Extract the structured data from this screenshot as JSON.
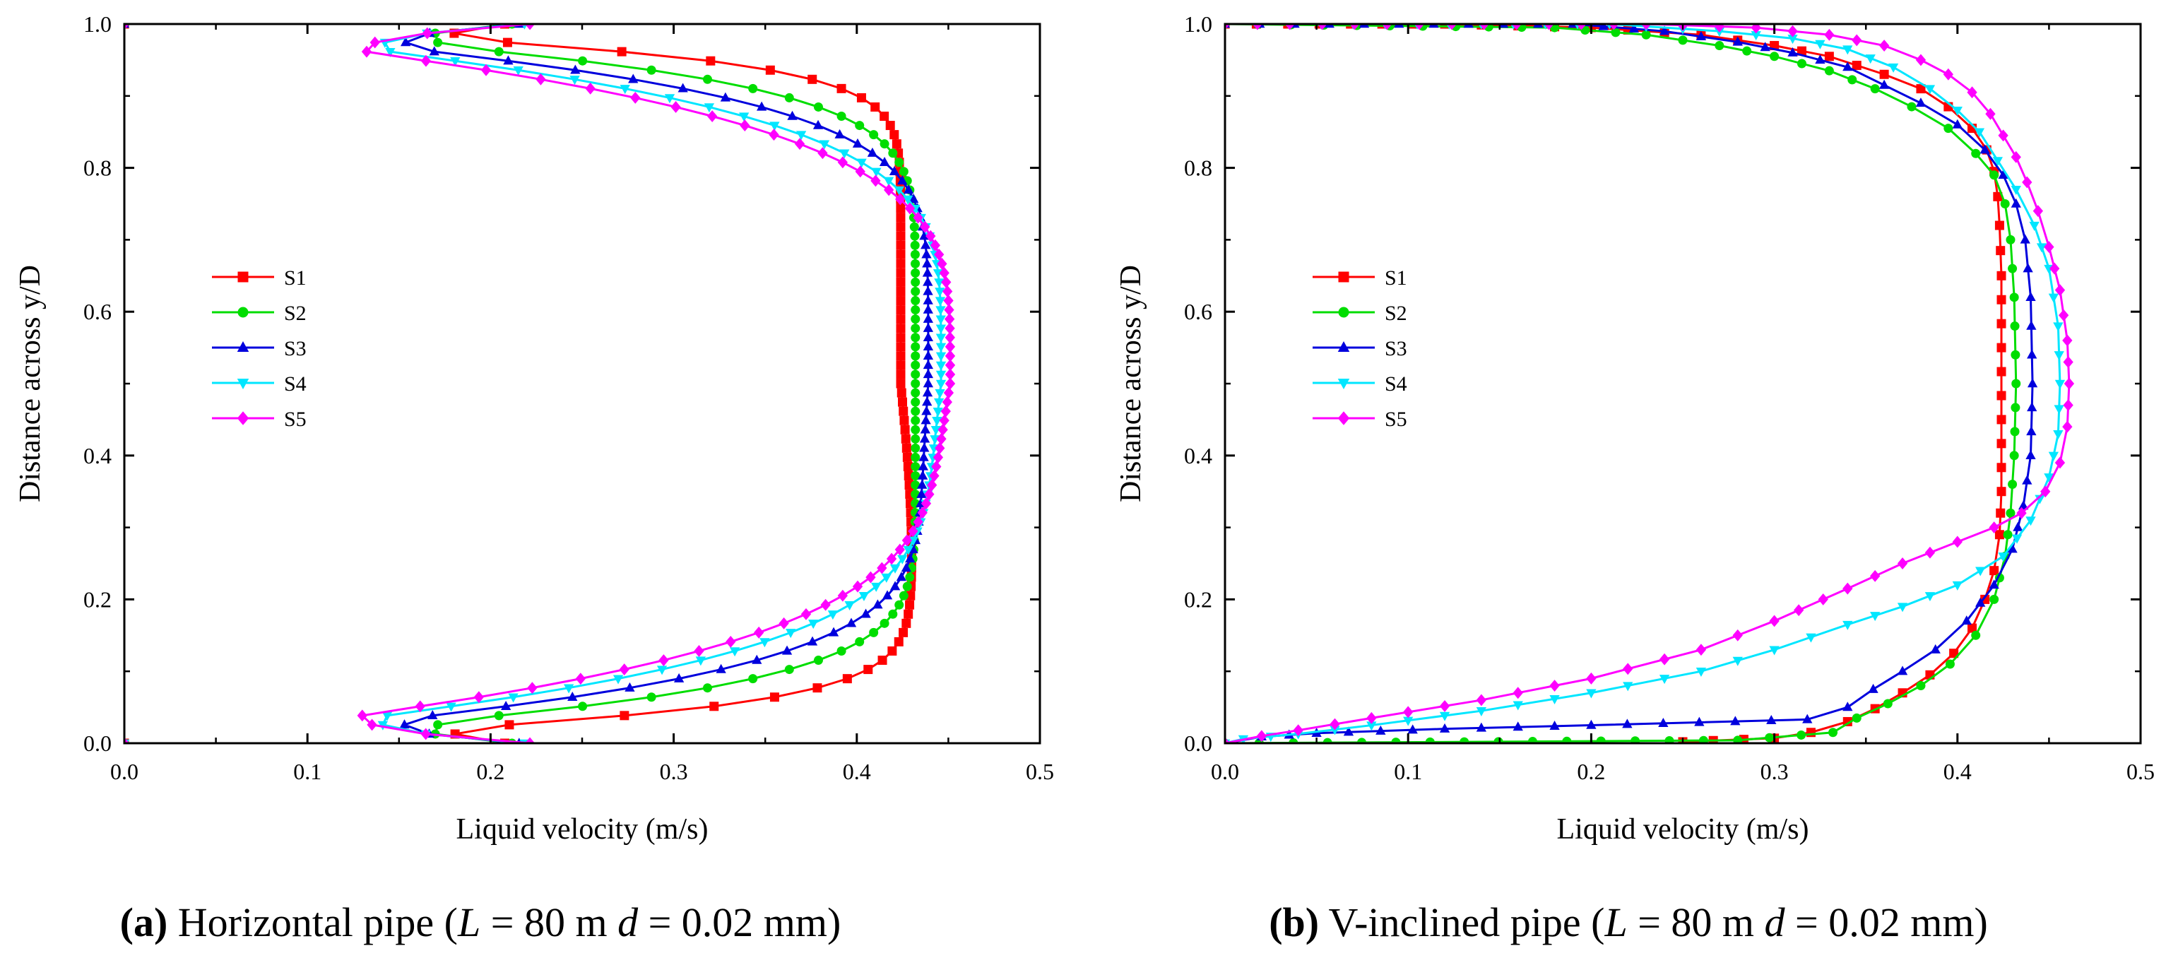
{
  "chart_data": [
    {
      "panel": "a",
      "type": "line",
      "xlabel": "Liquid velocity (m/s)",
      "ylabel": "Distance across y/D",
      "xlim": [
        0.0,
        0.5
      ],
      "ylim": [
        0.0,
        1.0
      ],
      "xticks": [
        "0.0",
        "0.1",
        "0.2",
        "0.3",
        "0.4",
        "0.5"
      ],
      "yticks": [
        "0.0",
        "0.2",
        "0.4",
        "0.6",
        "0.8",
        "1.0"
      ],
      "legend_position": "center-left",
      "caption": {
        "label": "(a)",
        "text_before": " Horizontal pipe (",
        "L": "L",
        "mid1": " = 80 m ",
        "d": "d",
        "mid2": " = 0.02 mm)"
      },
      "series": [
        {
          "name": "S1",
          "color": "#ff0000",
          "marker": "square",
          "umax": 0.424,
          "p": 13,
          "wall": 0.212,
          "lower_bump": 0.012
        },
        {
          "name": "S2",
          "color": "#00dd00",
          "marker": "circle",
          "umax": 0.432,
          "p": 8,
          "wall": 0.216,
          "lower_bump": 0.0
        },
        {
          "name": "S3",
          "color": "#0000dd",
          "marker": "triangle-up",
          "umax": 0.439,
          "p": 6,
          "wall": 0.22,
          "lower_bump": -0.008
        },
        {
          "name": "S4",
          "color": "#00e6ff",
          "marker": "triangle-down",
          "umax": 0.446,
          "p": 4.8,
          "wall": 0.223,
          "lower_bump": -0.014
        },
        {
          "name": "S5",
          "color": "#ff00ff",
          "marker": "diamond",
          "umax": 0.451,
          "p": 4.2,
          "wall": 0.226,
          "lower_bump": -0.02
        }
      ]
    },
    {
      "panel": "b",
      "type": "line",
      "xlabel": "Liquid velocity (m/s)",
      "ylabel": "Distance across y/D",
      "xlim": [
        0.0,
        0.5
      ],
      "ylim": [
        0.0,
        1.0
      ],
      "xticks": [
        "0.0",
        "0.1",
        "0.2",
        "0.3",
        "0.4",
        "0.5"
      ],
      "yticks": [
        "0.0",
        "0.2",
        "0.4",
        "0.6",
        "0.8",
        "1.0"
      ],
      "legend_position": "center-left",
      "caption": {
        "label": "(b)",
        "text_before": " V-inclined pipe (",
        "L": "L",
        "mid1": " = 80 m ",
        "d": "d",
        "mid2": " = 0.02 mm)"
      },
      "series": [
        {
          "name": "S1",
          "color": "#ff0000",
          "marker": "square",
          "points": [
            [
              0.0,
              1.0
            ],
            [
              0.12,
              1.0
            ],
            [
              0.2,
              0.995
            ],
            [
              0.26,
              0.985
            ],
            [
              0.3,
              0.97
            ],
            [
              0.33,
              0.955
            ],
            [
              0.36,
              0.93
            ],
            [
              0.38,
              0.91
            ],
            [
              0.395,
              0.885
            ],
            [
              0.408,
              0.855
            ],
            [
              0.416,
              0.825
            ],
            [
              0.42,
              0.795
            ],
            [
              0.422,
              0.76
            ],
            [
              0.423,
              0.72
            ],
            [
              0.424,
              0.65
            ],
            [
              0.424,
              0.55
            ],
            [
              0.424,
              0.45
            ],
            [
              0.424,
              0.35
            ],
            [
              0.423,
              0.29
            ],
            [
              0.42,
              0.24
            ],
            [
              0.415,
              0.2
            ],
            [
              0.408,
              0.16
            ],
            [
              0.398,
              0.125
            ],
            [
              0.385,
              0.095
            ],
            [
              0.37,
              0.07
            ],
            [
              0.355,
              0.048
            ],
            [
              0.34,
              0.03
            ],
            [
              0.32,
              0.015
            ],
            [
              0.3,
              0.007
            ],
            [
              0.25,
              0.002
            ]
          ]
        },
        {
          "name": "S2",
          "color": "#00dd00",
          "marker": "circle",
          "points": [
            [
              0.0,
              1.0
            ],
            [
              0.18,
              0.995
            ],
            [
              0.23,
              0.985
            ],
            [
              0.27,
              0.97
            ],
            [
              0.3,
              0.955
            ],
            [
              0.33,
              0.935
            ],
            [
              0.355,
              0.91
            ],
            [
              0.375,
              0.885
            ],
            [
              0.395,
              0.855
            ],
            [
              0.41,
              0.82
            ],
            [
              0.42,
              0.79
            ],
            [
              0.426,
              0.75
            ],
            [
              0.429,
              0.7
            ],
            [
              0.431,
              0.62
            ],
            [
              0.432,
              0.5
            ],
            [
              0.431,
              0.4
            ],
            [
              0.429,
              0.32
            ],
            [
              0.426,
              0.26
            ],
            [
              0.42,
              0.2
            ],
            [
              0.41,
              0.15
            ],
            [
              0.396,
              0.11
            ],
            [
              0.38,
              0.08
            ],
            [
              0.362,
              0.055
            ],
            [
              0.345,
              0.035
            ],
            [
              0.332,
              0.015
            ],
            [
              0.28,
              0.004
            ],
            [
              0.0,
              0.0
            ]
          ]
        },
        {
          "name": "S3",
          "color": "#0000dd",
          "marker": "triangle-up",
          "points": [
            [
              0.0,
              1.0
            ],
            [
              0.19,
              1.0
            ],
            [
              0.24,
              0.99
            ],
            [
              0.28,
              0.975
            ],
            [
              0.31,
              0.96
            ],
            [
              0.34,
              0.94
            ],
            [
              0.36,
              0.915
            ],
            [
              0.38,
              0.89
            ],
            [
              0.4,
              0.86
            ],
            [
              0.415,
              0.825
            ],
            [
              0.425,
              0.79
            ],
            [
              0.432,
              0.75
            ],
            [
              0.437,
              0.7
            ],
            [
              0.44,
              0.62
            ],
            [
              0.441,
              0.5
            ],
            [
              0.44,
              0.4
            ],
            [
              0.436,
              0.33
            ],
            [
              0.43,
              0.27
            ],
            [
              0.42,
              0.22
            ],
            [
              0.405,
              0.17
            ],
            [
              0.388,
              0.13
            ],
            [
              0.37,
              0.1
            ],
            [
              0.354,
              0.075
            ],
            [
              0.34,
              0.05
            ],
            [
              0.318,
              0.033
            ],
            [
              0.2,
              0.025
            ],
            [
              0.12,
              0.02
            ],
            [
              0.05,
              0.014
            ],
            [
              0.02,
              0.009
            ],
            [
              0.0,
              0.0
            ]
          ]
        },
        {
          "name": "S4",
          "color": "#00e6ff",
          "marker": "triangle-down",
          "points": [
            [
              0.0,
              1.0
            ],
            [
              0.21,
              1.0
            ],
            [
              0.27,
              0.99
            ],
            [
              0.31,
              0.98
            ],
            [
              0.34,
              0.965
            ],
            [
              0.365,
              0.94
            ],
            [
              0.385,
              0.91
            ],
            [
              0.4,
              0.88
            ],
            [
              0.412,
              0.85
            ],
            [
              0.422,
              0.81
            ],
            [
              0.432,
              0.77
            ],
            [
              0.442,
              0.72
            ],
            [
              0.45,
              0.66
            ],
            [
              0.455,
              0.58
            ],
            [
              0.456,
              0.5
            ],
            [
              0.455,
              0.43
            ],
            [
              0.45,
              0.37
            ],
            [
              0.44,
              0.31
            ],
            [
              0.425,
              0.26
            ],
            [
              0.4,
              0.22
            ],
            [
              0.37,
              0.19
            ],
            [
              0.34,
              0.165
            ],
            [
              0.3,
              0.13
            ],
            [
              0.26,
              0.1
            ],
            [
              0.2,
              0.07
            ],
            [
              0.14,
              0.045
            ],
            [
              0.08,
              0.025
            ],
            [
              0.04,
              0.013
            ],
            [
              0.01,
              0.006
            ],
            [
              0.0,
              0.0
            ]
          ]
        },
        {
          "name": "S5",
          "color": "#ff00ff",
          "marker": "diamond",
          "points": [
            [
              0.0,
              1.0
            ],
            [
              0.23,
              1.0
            ],
            [
              0.29,
              0.995
            ],
            [
              0.33,
              0.985
            ],
            [
              0.36,
              0.97
            ],
            [
              0.38,
              0.95
            ],
            [
              0.395,
              0.93
            ],
            [
              0.408,
              0.905
            ],
            [
              0.418,
              0.875
            ],
            [
              0.425,
              0.845
            ],
            [
              0.432,
              0.815
            ],
            [
              0.438,
              0.78
            ],
            [
              0.444,
              0.74
            ],
            [
              0.45,
              0.69
            ],
            [
              0.456,
              0.63
            ],
            [
              0.46,
              0.56
            ],
            [
              0.461,
              0.5
            ],
            [
              0.46,
              0.44
            ],
            [
              0.456,
              0.39
            ],
            [
              0.448,
              0.35
            ],
            [
              0.435,
              0.32
            ],
            [
              0.42,
              0.3
            ],
            [
              0.4,
              0.28
            ],
            [
              0.37,
              0.25
            ],
            [
              0.34,
              0.215
            ],
            [
              0.3,
              0.17
            ],
            [
              0.26,
              0.13
            ],
            [
              0.2,
              0.09
            ],
            [
              0.14,
              0.06
            ],
            [
              0.08,
              0.035
            ],
            [
              0.04,
              0.018
            ],
            [
              0.02,
              0.01
            ],
            [
              0.0,
              0.0
            ]
          ]
        }
      ]
    }
  ]
}
